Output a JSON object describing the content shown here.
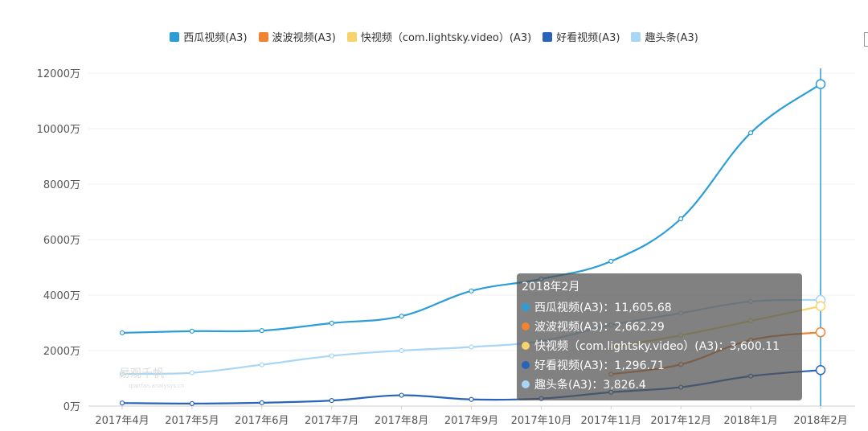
{
  "colors": {
    "xigua": "#2d9dd8",
    "bobo": "#f08432",
    "kuai": "#f7d46b",
    "haokan": "#2a64b8",
    "qutoutiao": "#a9d6f5"
  },
  "watermark": {
    "text": "易观千帆",
    "sub": "qianfan.analysys.cn"
  },
  "tooltip": {
    "title": "2018年2月",
    "rows": [
      {
        "label": "西瓜视频(A3)：11,605.68",
        "color": "#2d9dd8"
      },
      {
        "label": "波波视频(A3)：2,662.29",
        "color": "#f08432"
      },
      {
        "label": "快视频（com.lightsky.video）(A3)：3,600.11",
        "color": "#f7d46b"
      },
      {
        "label": "好看视频(A3)：1,296.71",
        "color": "#2a64b8"
      },
      {
        "label": "趣头条(A3)：3,826.4",
        "color": "#a9d6f5"
      }
    ]
  },
  "chart_data": {
    "type": "line",
    "categories": [
      "2017年4月",
      "2017年5月",
      "2017年6月",
      "2017年7月",
      "2017年8月",
      "2017年9月",
      "2017年10月",
      "2017年11月",
      "2017年12月",
      "2018年1月",
      "2018年2月"
    ],
    "ylim": [
      0,
      12000
    ],
    "yticks": [
      0,
      2000,
      4000,
      6000,
      8000,
      10000,
      12000
    ],
    "ytick_labels": [
      "0万",
      "2000万",
      "4000万",
      "6000万",
      "8000万",
      "10000万",
      "12000万"
    ],
    "legend_position": "top",
    "grid": true,
    "highlight_category": "2018年2月",
    "series": [
      {
        "name": "西瓜视频(A3)",
        "color": "#2d9dd8",
        "values": [
          2640,
          2700,
          2720,
          2990,
          3240,
          4150,
          4580,
          5220,
          6750,
          9850,
          11605.68
        ]
      },
      {
        "name": "波波视频(A3)",
        "color": "#f08432",
        "values": [
          null,
          null,
          null,
          null,
          null,
          null,
          null,
          1150,
          1500,
          2380,
          2662.29
        ]
      },
      {
        "name": "快视频（com.lightsky.video）(A3)",
        "color": "#f7d46b",
        "values": [
          null,
          null,
          null,
          null,
          null,
          null,
          null,
          2130,
          2550,
          3070,
          3600.11
        ]
      },
      {
        "name": "好看视频(A3)",
        "color": "#2a64b8",
        "values": [
          110,
          90,
          120,
          200,
          390,
          240,
          270,
          500,
          680,
          1080,
          1296.71
        ]
      },
      {
        "name": "趣头条(A3)",
        "color": "#a9d6f5",
        "values": [
          1160,
          1200,
          1490,
          1810,
          2000,
          2130,
          2340,
          2920,
          3350,
          3770,
          3826.4
        ]
      }
    ]
  }
}
